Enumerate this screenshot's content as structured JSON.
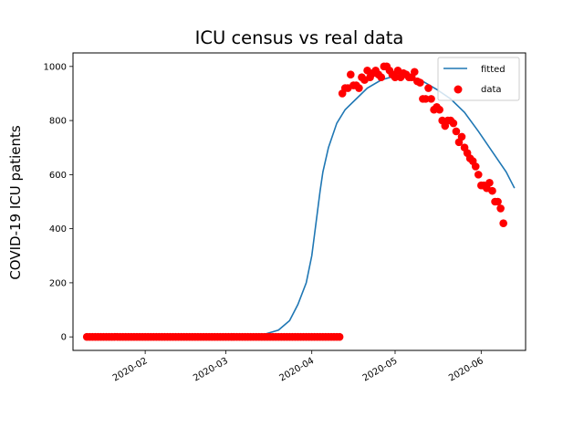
{
  "chart_data": {
    "type": "scatter",
    "title": "ICU census vs real data",
    "xlabel": "",
    "ylabel": "COVID-19 ICU patients",
    "x_axis": {
      "type": "date",
      "range": [
        "2020-01-06",
        "2020-06-17"
      ],
      "ticks": [
        "2020-02-01",
        "2020-03-01",
        "2020-04-01",
        "2020-05-01",
        "2020-06-01"
      ],
      "tick_labels": [
        "2020-02",
        "2020-03",
        "2020-04",
        "2020-05",
        "2020-06"
      ]
    },
    "y_axis": {
      "range": [
        -50,
        1050
      ],
      "ticks": [
        0,
        200,
        400,
        600,
        800,
        1000
      ],
      "tick_labels": [
        "0",
        "200",
        "400",
        "600",
        "800",
        "1000"
      ]
    },
    "grid": false,
    "legend": {
      "position": "top-right",
      "entries": [
        {
          "label": "fitted",
          "marker": "line",
          "color": "#1f77b4"
        },
        {
          "label": "data",
          "marker": "dot",
          "color": "#ff0000"
        }
      ]
    },
    "series": [
      {
        "name": "fitted",
        "kind": "line",
        "color": "#1f77b4",
        "points": [
          [
            "2020-01-11",
            0
          ],
          [
            "2020-01-20",
            0
          ],
          [
            "2020-02-01",
            0
          ],
          [
            "2020-02-15",
            0
          ],
          [
            "2020-03-01",
            1
          ],
          [
            "2020-03-10",
            5
          ],
          [
            "2020-03-15",
            10
          ],
          [
            "2020-03-20",
            25
          ],
          [
            "2020-03-24",
            60
          ],
          [
            "2020-03-27",
            120
          ],
          [
            "2020-03-30",
            200
          ],
          [
            "2020-04-01",
            300
          ],
          [
            "2020-04-02",
            380
          ],
          [
            "2020-04-03",
            460
          ],
          [
            "2020-04-04",
            540
          ],
          [
            "2020-04-05",
            610
          ],
          [
            "2020-04-07",
            700
          ],
          [
            "2020-04-10",
            790
          ],
          [
            "2020-04-13",
            840
          ],
          [
            "2020-04-17",
            880
          ],
          [
            "2020-04-21",
            920
          ],
          [
            "2020-04-26",
            950
          ],
          [
            "2020-05-01",
            965
          ],
          [
            "2020-05-06",
            960
          ],
          [
            "2020-05-11",
            945
          ],
          [
            "2020-05-16",
            915
          ],
          [
            "2020-05-21",
            880
          ],
          [
            "2020-05-26",
            830
          ],
          [
            "2020-05-31",
            760
          ],
          [
            "2020-06-05",
            685
          ],
          [
            "2020-06-10",
            610
          ],
          [
            "2020-06-13",
            550
          ]
        ]
      },
      {
        "name": "data",
        "kind": "scatter",
        "color": "#ff0000",
        "zero_run": {
          "from": "2020-01-11",
          "to": "2020-04-11",
          "value": 0
        },
        "points": [
          [
            "2020-04-12",
            900
          ],
          [
            "2020-04-13",
            920
          ],
          [
            "2020-04-14",
            920
          ],
          [
            "2020-04-15",
            970
          ],
          [
            "2020-04-16",
            930
          ],
          [
            "2020-04-17",
            930
          ],
          [
            "2020-04-18",
            920
          ],
          [
            "2020-04-19",
            960
          ],
          [
            "2020-04-20",
            950
          ],
          [
            "2020-04-21",
            985
          ],
          [
            "2020-04-22",
            960
          ],
          [
            "2020-04-23",
            975
          ],
          [
            "2020-04-24",
            985
          ],
          [
            "2020-04-25",
            970
          ],
          [
            "2020-04-26",
            960
          ],
          [
            "2020-04-27",
            1000
          ],
          [
            "2020-04-28",
            1000
          ],
          [
            "2020-04-29",
            985
          ],
          [
            "2020-04-30",
            970
          ],
          [
            "2020-05-01",
            960
          ],
          [
            "2020-05-02",
            985
          ],
          [
            "2020-05-03",
            960
          ],
          [
            "2020-05-04",
            975
          ],
          [
            "2020-05-05",
            970
          ],
          [
            "2020-05-06",
            960
          ],
          [
            "2020-05-07",
            960
          ],
          [
            "2020-05-08",
            980
          ],
          [
            "2020-05-09",
            945
          ],
          [
            "2020-05-10",
            940
          ],
          [
            "2020-05-11",
            880
          ],
          [
            "2020-05-12",
            880
          ],
          [
            "2020-05-13",
            920
          ],
          [
            "2020-05-14",
            880
          ],
          [
            "2020-05-15",
            840
          ],
          [
            "2020-05-16",
            850
          ],
          [
            "2020-05-17",
            840
          ],
          [
            "2020-05-18",
            800
          ],
          [
            "2020-05-19",
            780
          ],
          [
            "2020-05-20",
            800
          ],
          [
            "2020-05-21",
            800
          ],
          [
            "2020-05-22",
            790
          ],
          [
            "2020-05-23",
            760
          ],
          [
            "2020-05-24",
            720
          ],
          [
            "2020-05-25",
            740
          ],
          [
            "2020-05-26",
            700
          ],
          [
            "2020-05-27",
            680
          ],
          [
            "2020-05-28",
            660
          ],
          [
            "2020-05-29",
            650
          ],
          [
            "2020-05-30",
            630
          ],
          [
            "2020-05-31",
            600
          ],
          [
            "2020-06-01",
            560
          ],
          [
            "2020-06-02",
            560
          ],
          [
            "2020-06-03",
            550
          ],
          [
            "2020-06-04",
            570
          ],
          [
            "2020-06-05",
            540
          ],
          [
            "2020-06-06",
            500
          ],
          [
            "2020-06-07",
            500
          ],
          [
            "2020-06-08",
            475
          ],
          [
            "2020-06-09",
            420
          ]
        ]
      }
    ]
  }
}
